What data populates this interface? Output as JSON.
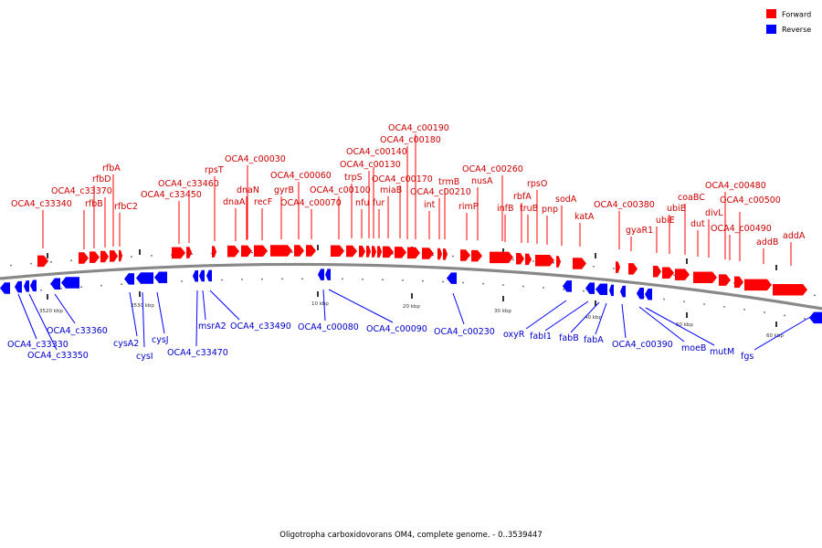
{
  "caption": "Oligotropha carboxidovorans OM4, complete genome. - 0..3539447",
  "legend": {
    "forward": {
      "label": "Forward",
      "color": "#ff0000"
    },
    "reverse": {
      "label": "Reverse",
      "color": "#0000ff"
    }
  },
  "backbone_color": "#888888",
  "tick_labels": [
    "3520 kbp",
    "3530 kbp",
    "10 kbp",
    "20 kbp",
    "30 kbp",
    "40 kbp",
    "50 kbp",
    "60 kbp"
  ],
  "forward_genes": [
    "OCA4_c33340",
    "rfbB",
    "rfbD",
    "OCA4_c33370",
    "rfbA",
    "rfbC2",
    "OCA4_c33450",
    "OCA4_c33460",
    "rpsT",
    "dnaA",
    "dnaN",
    "recF",
    "OCA4_c00030",
    "gyrB",
    "OCA4_c00060",
    "OCA4_c00070",
    "OCA4_c00100",
    "trpS",
    "nfu",
    "OCA4_c00130",
    "OCA4_c00140",
    "fur",
    "miaB",
    "OCA4_c00170",
    "OCA4_c00180",
    "OCA4_c00190",
    "int",
    "OCA4_c00210",
    "trmB",
    "rimP",
    "nusA",
    "OCA4_c00260",
    "infB",
    "rbfA",
    "truB",
    "rpsO",
    "pnp",
    "sodA",
    "katA",
    "OCA4_c00380",
    "gyaR1",
    "ubiE",
    "ubiB",
    "coaBC",
    "dut",
    "divL",
    "OCA4_c00480",
    "OCA4_c00490",
    "OCA4_c00500",
    "addB",
    "addA"
  ],
  "reverse_genes": [
    "OCA4_c33330",
    "OCA4_c33350",
    "OCA4_c33360",
    "cysA2",
    "cysI",
    "cysJ",
    "OCA4_c33470",
    "msrA2",
    "OCA4_c33490",
    "OCA4_c00080",
    "OCA4_c00090",
    "OCA4_c00230",
    "oxyR",
    "fabI1",
    "fabB",
    "fabA",
    "OCA4_c00390",
    "moeB",
    "mutM",
    "fgs"
  ]
}
